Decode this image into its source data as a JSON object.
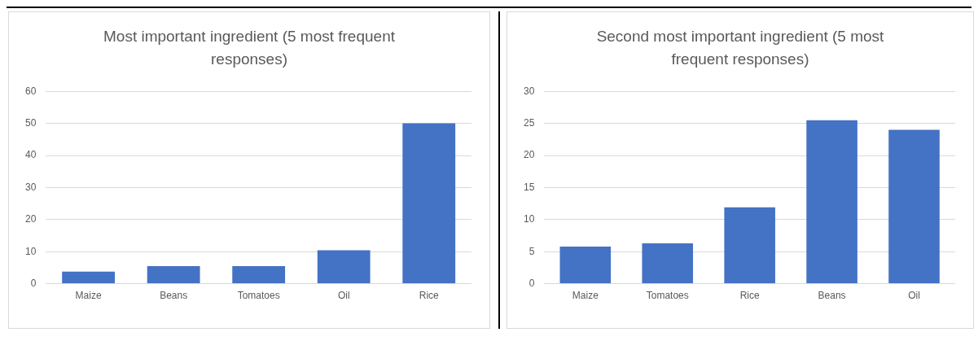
{
  "chart_data": [
    {
      "type": "bar",
      "title": "Most important ingredient (5 most frequent responses)",
      "categories": [
        "Maize",
        "Beans",
        "Tomatoes",
        "Oil",
        "Rice"
      ],
      "series": [
        {
          "color": "#4472c4",
          "values": [
            3.8,
            5.5,
            5.5,
            10.4,
            50
          ]
        }
      ],
      "ylim": [
        0,
        60
      ],
      "yticks": [
        0,
        10,
        20,
        30,
        40,
        50,
        60
      ],
      "grid": "y",
      "legend": false
    },
    {
      "type": "bar",
      "title": "Second most important ingredient (5 most frequent responses)",
      "categories": [
        "Maize",
        "Tomatoes",
        "Rice",
        "Beans",
        "Oil"
      ],
      "series": [
        {
          "color": "#4472c4",
          "values": [
            5.8,
            6.3,
            11.9,
            25.5,
            24.0
          ]
        }
      ],
      "ylim": [
        0,
        30
      ],
      "yticks": [
        0,
        5,
        10,
        15,
        20,
        25,
        30
      ],
      "grid": "y",
      "legend": false
    }
  ]
}
